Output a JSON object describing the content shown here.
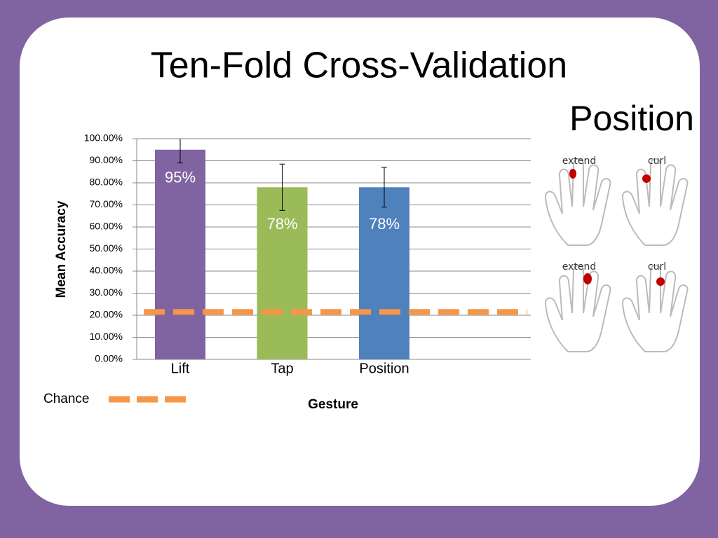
{
  "chart_data": {
    "type": "bar",
    "title": "Ten-Fold Cross-Validation",
    "categories": [
      "Lift",
      "Tap",
      "Position"
    ],
    "values": [
      95,
      78,
      78
    ],
    "value_labels": [
      "95%",
      "78%",
      "78%"
    ],
    "errors": [
      6,
      10.5,
      9
    ],
    "colors": [
      "#8064a2",
      "#9bbb59",
      "#4f81bd"
    ],
    "ylim": [
      0,
      100
    ],
    "yticks": [
      {
        "value": 0,
        "label": "0.00%"
      },
      {
        "value": 10,
        "label": "10.00%"
      },
      {
        "value": 20,
        "label": "20.00%"
      },
      {
        "value": 30,
        "label": "30.00%"
      },
      {
        "value": 40,
        "label": "40.00%"
      },
      {
        "value": 50,
        "label": "50.00%"
      },
      {
        "value": 60,
        "label": "60.00%"
      },
      {
        "value": 70,
        "label": "70.00%"
      },
      {
        "value": 80,
        "label": "80.00%"
      },
      {
        "value": 90,
        "label": "90.00%"
      },
      {
        "value": 100,
        "label": "100.00%"
      }
    ],
    "grid": true,
    "xlabel": "Gesture",
    "ylabel": "Mean Accuracy",
    "reference_line": {
      "name": "Chance",
      "value": 21.5,
      "color": "#f79646"
    }
  },
  "panel": {
    "title": "Position",
    "items": [
      {
        "label": "extend"
      },
      {
        "label": "curl"
      },
      {
        "label": "extend"
      },
      {
        "label": "curl"
      }
    ]
  }
}
